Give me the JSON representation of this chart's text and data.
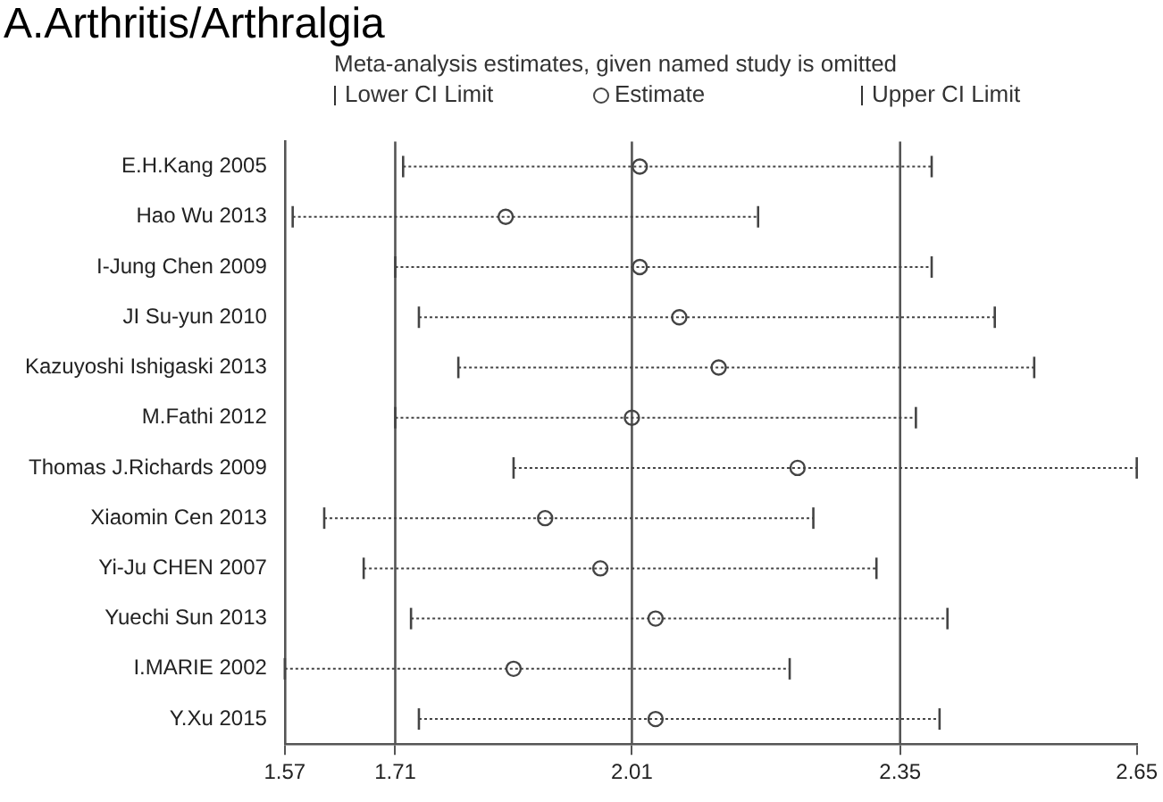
{
  "chart_data": {
    "type": "scatter",
    "orientation": "horizontal",
    "title": "A.Arthritis/Arthralgia",
    "subtitle": "Meta-analysis estimates, given named study is omitted",
    "categories": [
      "E.H.Kang 2005",
      "Hao Wu 2013",
      "I-Jung Chen 2009",
      "JI Su-yun 2010",
      "Kazuyoshi Ishigaski 2013",
      "M.Fathi 2012",
      "Thomas J.Richards 2009",
      "Xiaomin Cen 2013",
      "Yi-Ju CHEN 2007",
      "Yuechi Sun 2013",
      "I.MARIE 2002",
      "Y.Xu 2015"
    ],
    "series": [
      {
        "name": "Estimate",
        "color": "#444444",
        "marker": "circle",
        "line_style": "dotted",
        "values": [
          2.02,
          1.85,
          2.02,
          2.07,
          2.12,
          2.01,
          2.22,
          1.9,
          1.97,
          2.04,
          1.86,
          2.04
        ],
        "errors": [
          [
            1.72,
            2.39
          ],
          [
            1.58,
            2.17
          ],
          [
            1.71,
            2.39
          ],
          [
            1.74,
            2.47
          ],
          [
            1.79,
            2.52
          ],
          [
            1.71,
            2.37
          ],
          [
            1.86,
            2.65
          ],
          [
            1.62,
            2.24
          ],
          [
            1.67,
            2.32
          ],
          [
            1.73,
            2.41
          ],
          [
            1.57,
            2.21
          ],
          [
            1.74,
            2.4
          ]
        ]
      }
    ],
    "xlim": [
      1.57,
      2.65
    ],
    "xticks": [
      1.57,
      1.71,
      2.01,
      2.35,
      2.65
    ],
    "ref_lines": [
      {
        "axis": "x",
        "value": 1.71,
        "color": "#555555"
      },
      {
        "axis": "x",
        "value": 2.01,
        "color": "#555555"
      },
      {
        "axis": "x",
        "value": 2.35,
        "color": "#555555"
      }
    ],
    "legend": "top",
    "annotations": [
      "Lower CI Limit",
      "Upper CI Limit"
    ]
  }
}
